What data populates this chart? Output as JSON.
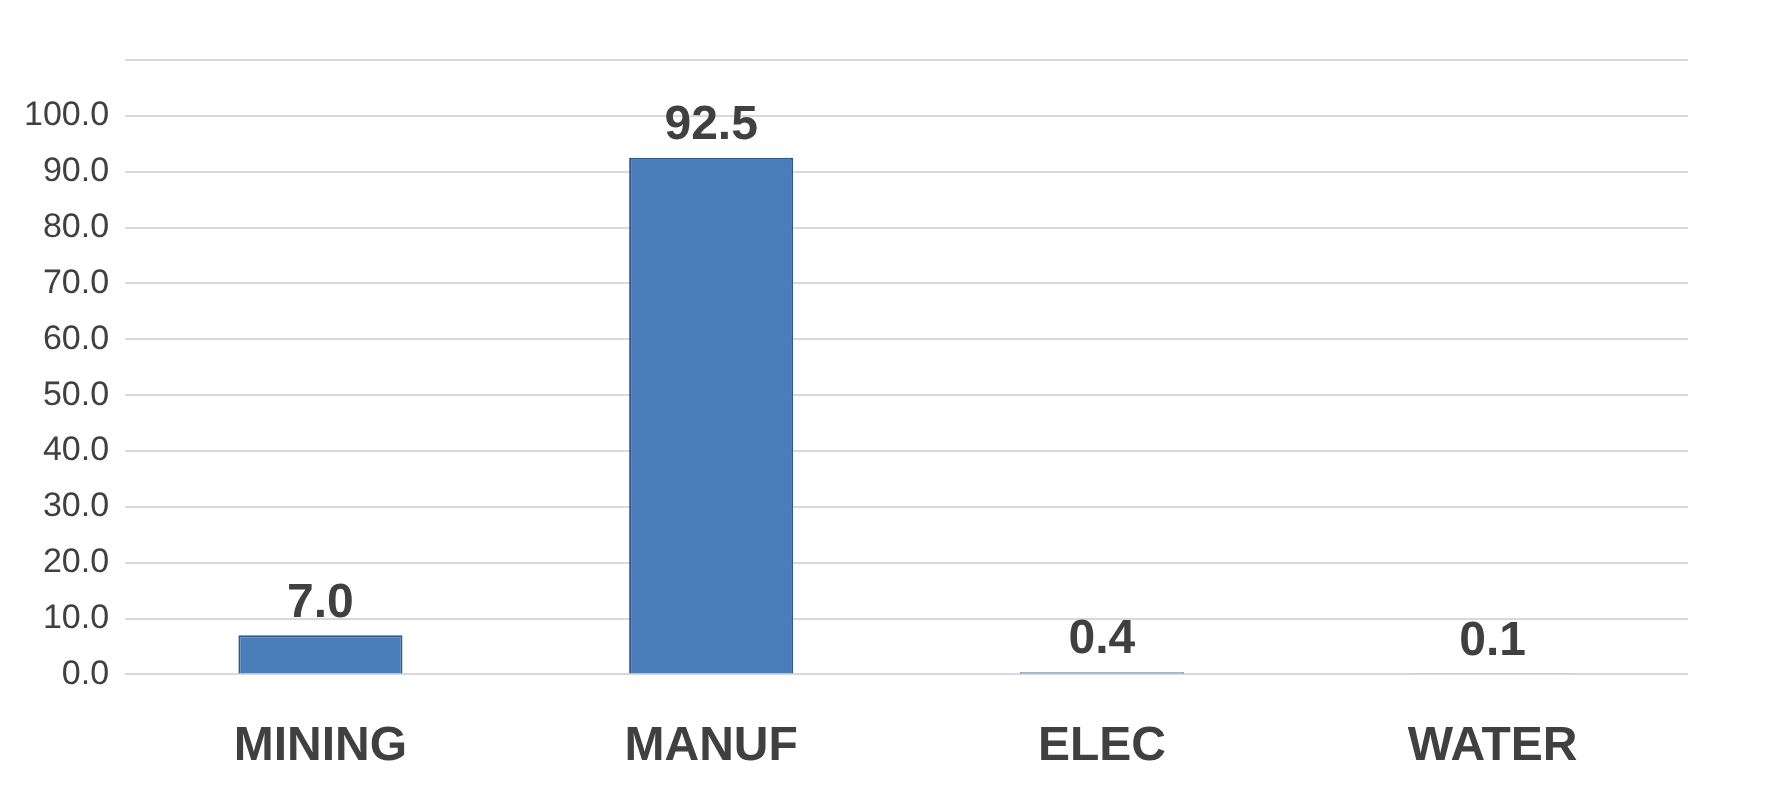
{
  "chart_data": {
    "type": "bar",
    "categories": [
      "MINING",
      "MANUF",
      "ELEC",
      "WATER"
    ],
    "values": [
      7.0,
      92.5,
      0.4,
      0.1
    ],
    "value_labels": [
      "7.0",
      "92.5",
      "0.4",
      "0.1"
    ],
    "color": "#4a7ebb",
    "ylim": [
      0,
      110
    ],
    "yticks": [
      {
        "value": 0,
        "label": "0.0"
      },
      {
        "value": 10,
        "label": "10.0"
      },
      {
        "value": 20,
        "label": "20.0"
      },
      {
        "value": 30,
        "label": "30.0"
      },
      {
        "value": 40,
        "label": "40.0"
      },
      {
        "value": 50,
        "label": "50.0"
      },
      {
        "value": 60,
        "label": "60.0"
      },
      {
        "value": 70,
        "label": "70.0"
      },
      {
        "value": 80,
        "label": "80.0"
      },
      {
        "value": 90,
        "label": "90.0"
      },
      {
        "value": 100,
        "label": "100.0"
      },
      {
        "value": 110,
        "label": null
      }
    ],
    "grid": "y",
    "legend": false
  }
}
